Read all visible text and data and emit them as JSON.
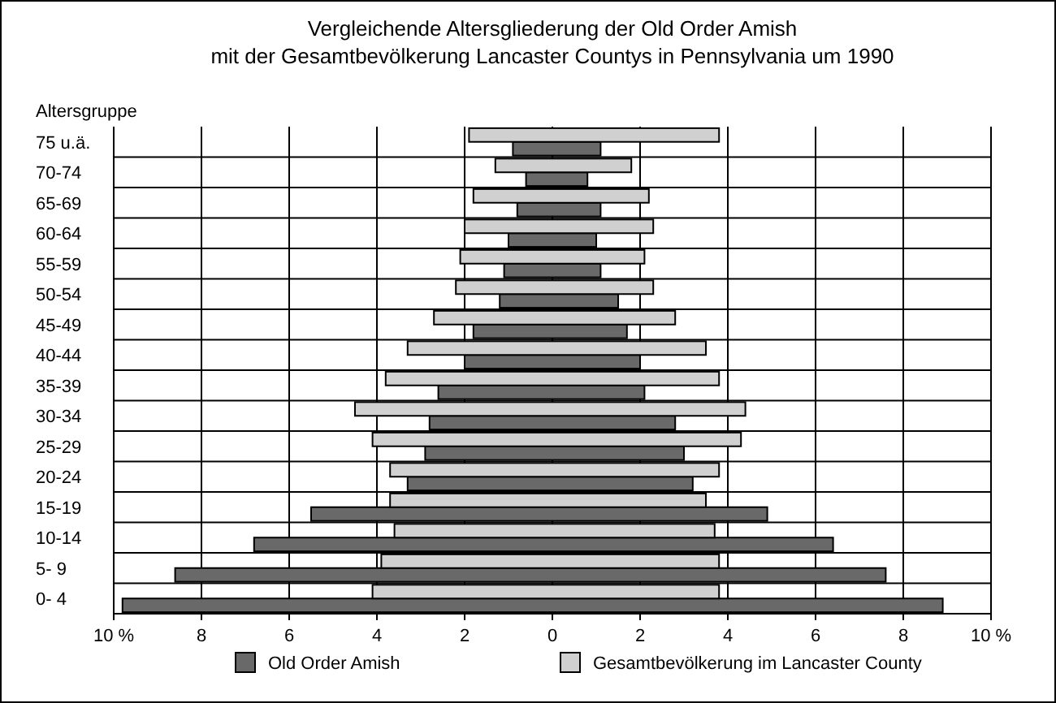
{
  "chart_data": {
    "type": "bar",
    "orientation": "horizontal",
    "title": "Vergleichende Altersgliederung der Old Order Amish\nmit der Gesamtbevölkerung Lancaster Countys in Pennsylvania um 1990",
    "ylabel": "Altersgruppe",
    "categories": [
      "75 u.ä.",
      "70-74",
      "65-69",
      "60-64",
      "55-59",
      "50-54",
      "45-49",
      "40-44",
      "35-39",
      "30-34",
      "25-29",
      "20-24",
      "15-19",
      "10-14",
      "5- 9",
      "0- 4"
    ],
    "series": [
      {
        "name": "Old Order Amish",
        "color": "#696969",
        "base": [
          -0.9,
          -0.6,
          -0.8,
          -1.0,
          -1.1,
          -1.2,
          -1.8,
          -2.0,
          -2.6,
          -2.8,
          -2.9,
          -3.3,
          -5.5,
          -6.8,
          -8.6,
          -9.8
        ],
        "values": [
          2.0,
          1.4,
          1.9,
          2.0,
          2.2,
          2.7,
          3.5,
          4.0,
          4.7,
          5.6,
          5.9,
          6.5,
          10.4,
          13.2,
          16.2,
          18.7
        ]
      },
      {
        "name": "Gesamtbevölkerung im Lancaster County",
        "color": "#d0d0d0",
        "base": [
          -1.9,
          -1.3,
          -1.8,
          -2.0,
          -2.1,
          -2.2,
          -2.7,
          -3.3,
          -3.8,
          -4.5,
          -4.1,
          -3.7,
          -3.7,
          -3.6,
          -3.9,
          -4.1
        ],
        "values": [
          5.7,
          3.1,
          4.0,
          4.3,
          4.2,
          4.5,
          5.5,
          6.8,
          7.6,
          8.9,
          8.4,
          7.5,
          7.2,
          7.3,
          7.7,
          7.9
        ]
      }
    ],
    "xlim": [
      -10,
      10
    ],
    "xticks": [
      {
        "value": -10,
        "label": "10 %"
      },
      {
        "value": -8,
        "label": "8"
      },
      {
        "value": -6,
        "label": "6"
      },
      {
        "value": -4,
        "label": "4"
      },
      {
        "value": -2,
        "label": "2"
      },
      0,
      2,
      4,
      6,
      8,
      {
        "value": 10,
        "label": "10 %"
      }
    ],
    "grid": true,
    "legend": "bottom"
  }
}
